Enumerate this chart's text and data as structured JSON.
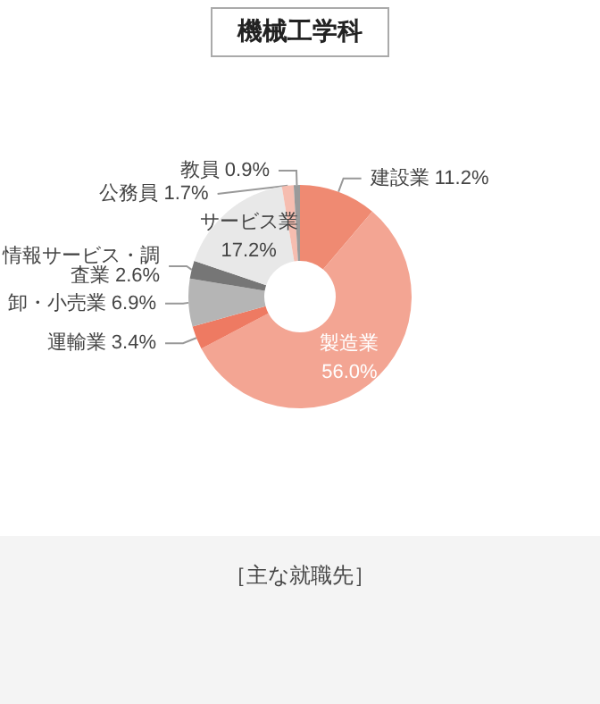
{
  "chart_data": {
    "type": "donut",
    "title": "機械工学科",
    "categories": [
      "建設業",
      "製造業",
      "運輸業",
      "卸・小売業",
      "情報サービス・調査業",
      "サービス業",
      "公務員",
      "教員"
    ],
    "values": [
      11.2,
      56.0,
      3.4,
      6.9,
      2.6,
      17.2,
      1.7,
      0.9
    ],
    "colors": [
      "#ef8a72",
      "#f3a593",
      "#ee7a62",
      "#b5b5b5",
      "#767676",
      "#e8e8e8",
      "#f6bdb0",
      "#9a9a9a"
    ],
    "value_labels": [
      "11.2%",
      "56.0%",
      "3.4%",
      "6.9%",
      "2.6%",
      "17.2%",
      "1.7%",
      "0.9%"
    ],
    "legend": false,
    "annotations": [
      "［主な就職先］"
    ]
  }
}
